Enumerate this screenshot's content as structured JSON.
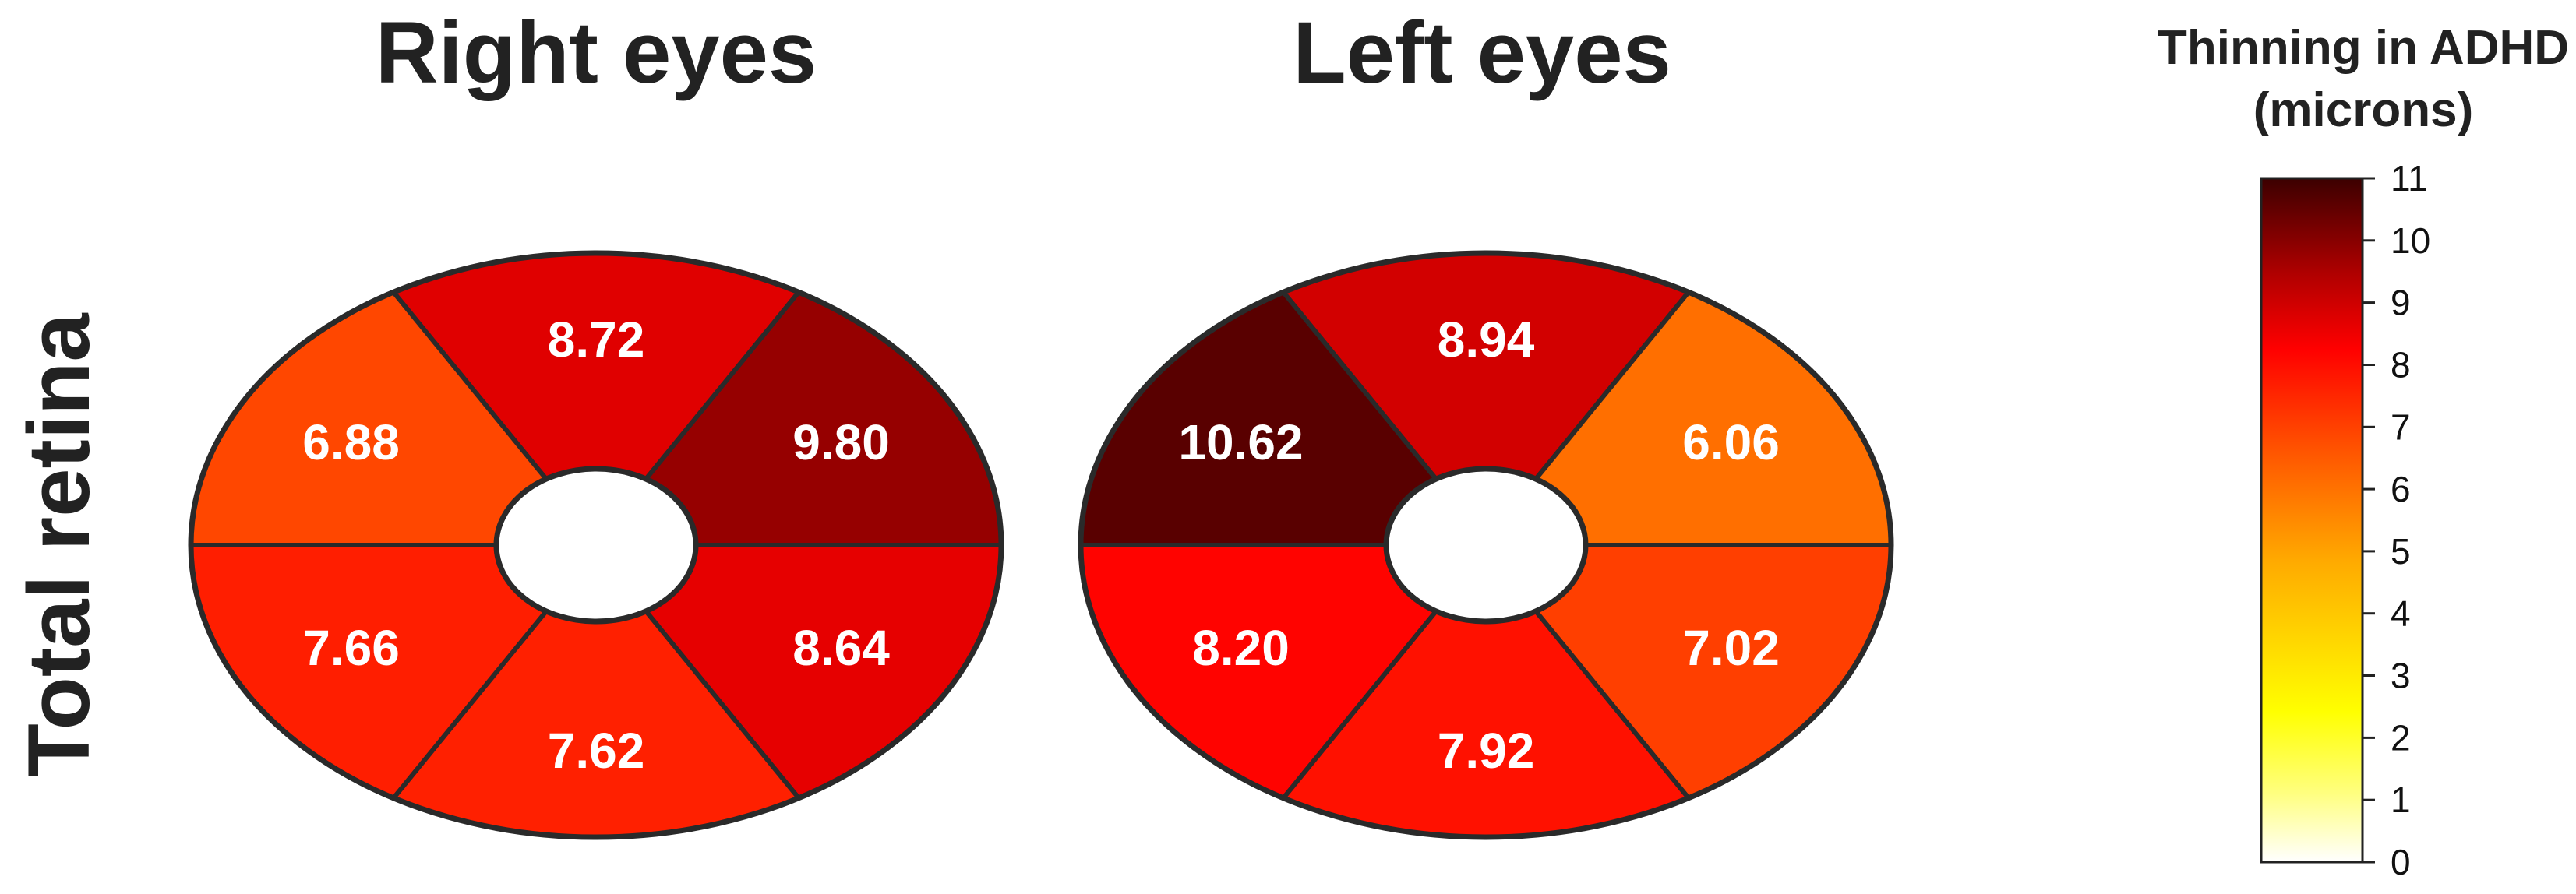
{
  "chart_data": {
    "type": "heatmap",
    "row_label": "Total retina",
    "colorbar": {
      "title_line1": "Thinning in ADHD",
      "title_line2": "(microns)",
      "min": 0,
      "max": 11,
      "ticks": [
        "0",
        "1",
        "2",
        "3",
        "4",
        "5",
        "6",
        "7",
        "8",
        "9",
        "10",
        "11"
      ]
    },
    "panels": [
      {
        "title": "Right eyes",
        "sectors": [
          {
            "position": "top",
            "value": 8.72,
            "label": "8.72"
          },
          {
            "position": "upper-right",
            "value": 9.8,
            "label": "9.80"
          },
          {
            "position": "lower-right",
            "value": 8.64,
            "label": "8.64"
          },
          {
            "position": "bottom",
            "value": 7.62,
            "label": "7.62"
          },
          {
            "position": "lower-left",
            "value": 7.66,
            "label": "7.66"
          },
          {
            "position": "upper-left",
            "value": 6.88,
            "label": "6.88"
          }
        ]
      },
      {
        "title": "Left eyes",
        "sectors": [
          {
            "position": "top",
            "value": 8.94,
            "label": "8.94"
          },
          {
            "position": "upper-right",
            "value": 6.06,
            "label": "6.06"
          },
          {
            "position": "lower-right",
            "value": 7.02,
            "label": "7.02"
          },
          {
            "position": "bottom",
            "value": 7.92,
            "label": "7.92"
          },
          {
            "position": "lower-left",
            "value": 8.2,
            "label": "8.20"
          },
          {
            "position": "upper-left",
            "value": 10.62,
            "label": "10.62"
          }
        ]
      }
    ]
  }
}
